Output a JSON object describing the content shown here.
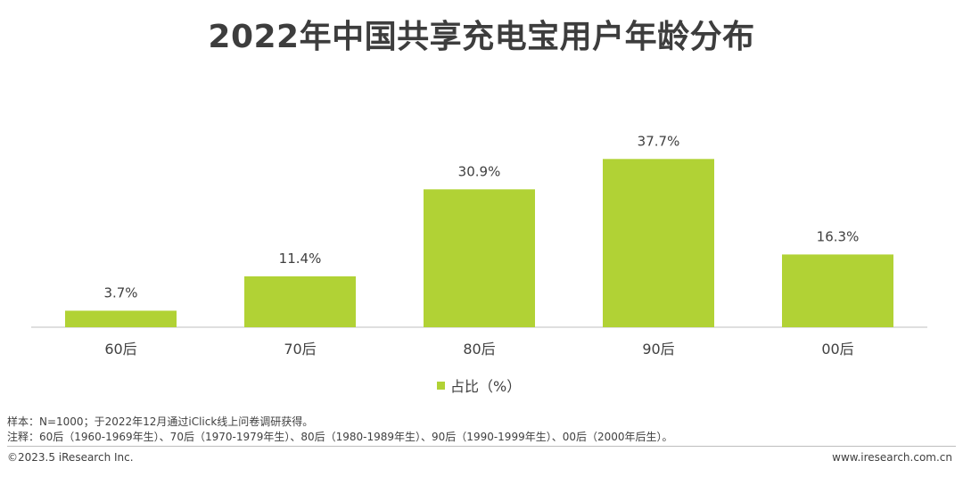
{
  "chart_data": {
    "type": "bar",
    "title": "2022年中国共享充电宝用户年龄分布",
    "categories": [
      "60后",
      "70后",
      "80后",
      "90后",
      "00后"
    ],
    "series": [
      {
        "name": "占比（%）",
        "values": [
          3.7,
          11.4,
          30.9,
          37.7,
          16.3
        ],
        "labels": [
          "3.7%",
          "11.4%",
          "30.9%",
          "37.7%",
          "16.3%"
        ],
        "color": "#b1d235"
      }
    ],
    "ylim": [
      0,
      40
    ],
    "grid": false,
    "legend_position": "bottom",
    "axis_color": "#bfbfbf"
  },
  "notes": {
    "sample": "样本：N=1000；于2022年12月通过iClick线上问卷调研获得。",
    "annotation": "注释：60后（1960-1969年生）、70后（1970-1979年生）、80后（1980-1989年生）、90后（1990-1999年生）、00后（2000年后生）。"
  },
  "footer": {
    "copyright": "©2023.5 iResearch Inc.",
    "website": "www.iresearch.com.cn"
  }
}
